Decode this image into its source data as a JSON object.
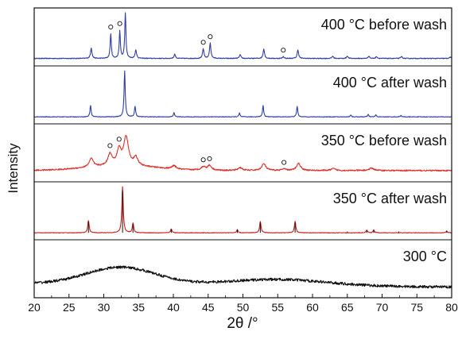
{
  "chart_data": {
    "type": "line",
    "title": "",
    "xlabel": "2θ /°",
    "ylabel": "Intensity",
    "xlim": [
      20,
      80
    ],
    "x_ticks": [
      "20",
      "25",
      "30",
      "35",
      "40",
      "45",
      "50",
      "55",
      "60",
      "65",
      "70",
      "75",
      "80"
    ],
    "grid": false,
    "legend": "none",
    "marker_symbol": "o",
    "panels": [
      {
        "label": "400 °C before wash",
        "color": "#2f3fa3",
        "baseline": 0.04,
        "noise": 0.008,
        "peaks": [
          {
            "x": 28.2,
            "h": 0.22,
            "w": 0.12
          },
          {
            "x": 31.0,
            "h": 0.52,
            "w": 0.1
          },
          {
            "x": 32.3,
            "h": 0.58,
            "w": 0.1
          },
          {
            "x": 33.1,
            "h": 0.97,
            "w": 0.1
          },
          {
            "x": 34.6,
            "h": 0.18,
            "w": 0.12
          },
          {
            "x": 40.2,
            "h": 0.09,
            "w": 0.12
          },
          {
            "x": 44.3,
            "h": 0.2,
            "w": 0.12
          },
          {
            "x": 45.3,
            "h": 0.32,
            "w": 0.12
          },
          {
            "x": 49.6,
            "h": 0.08,
            "w": 0.12
          },
          {
            "x": 53.0,
            "h": 0.2,
            "w": 0.12
          },
          {
            "x": 55.8,
            "h": 0.04,
            "w": 0.12
          },
          {
            "x": 57.9,
            "h": 0.18,
            "w": 0.12
          },
          {
            "x": 62.9,
            "h": 0.05,
            "w": 0.12
          },
          {
            "x": 65.0,
            "h": 0.05,
            "w": 0.12
          },
          {
            "x": 68.1,
            "h": 0.05,
            "w": 0.12
          },
          {
            "x": 69.2,
            "h": 0.04,
            "w": 0.12
          },
          {
            "x": 72.8,
            "h": 0.04,
            "w": 0.12
          },
          {
            "x": 79.8,
            "h": 0.03,
            "w": 0.12
          }
        ],
        "markers": [
          31.0,
          32.3,
          44.3,
          45.3,
          55.8
        ]
      },
      {
        "label": "400 °C after wash",
        "color": "#2f3fa3",
        "baseline": 0.03,
        "noise": 0.006,
        "peaks": [
          {
            "x": 28.1,
            "h": 0.24,
            "w": 0.1
          },
          {
            "x": 33.0,
            "h": 0.97,
            "w": 0.1
          },
          {
            "x": 34.5,
            "h": 0.22,
            "w": 0.1
          },
          {
            "x": 40.1,
            "h": 0.09,
            "w": 0.1
          },
          {
            "x": 49.5,
            "h": 0.08,
            "w": 0.1
          },
          {
            "x": 52.9,
            "h": 0.24,
            "w": 0.1
          },
          {
            "x": 57.8,
            "h": 0.22,
            "w": 0.1
          },
          {
            "x": 65.5,
            "h": 0.04,
            "w": 0.1
          },
          {
            "x": 68.0,
            "h": 0.05,
            "w": 0.1
          },
          {
            "x": 69.1,
            "h": 0.04,
            "w": 0.1
          },
          {
            "x": 72.7,
            "h": 0.03,
            "w": 0.1
          }
        ],
        "markers": []
      },
      {
        "label": "350 °C before wash",
        "color": "#e0302a",
        "baseline": 0.12,
        "noise": 0.014,
        "peaks": [
          {
            "x": 28.2,
            "h": 0.18,
            "w": 0.35
          },
          {
            "x": 30.9,
            "h": 0.25,
            "w": 0.35
          },
          {
            "x": 32.2,
            "h": 0.32,
            "w": 0.35
          },
          {
            "x": 33.2,
            "h": 0.6,
            "w": 0.4
          },
          {
            "x": 34.6,
            "h": 0.17,
            "w": 0.35
          },
          {
            "x": 40.1,
            "h": 0.07,
            "w": 0.35
          },
          {
            "x": 44.3,
            "h": 0.07,
            "w": 0.35
          },
          {
            "x": 45.2,
            "h": 0.1,
            "w": 0.35
          },
          {
            "x": 49.6,
            "h": 0.06,
            "w": 0.35
          },
          {
            "x": 53.0,
            "h": 0.14,
            "w": 0.35
          },
          {
            "x": 55.9,
            "h": 0.03,
            "w": 0.35
          },
          {
            "x": 58.0,
            "h": 0.15,
            "w": 0.35
          },
          {
            "x": 63.0,
            "h": 0.04,
            "w": 0.35
          },
          {
            "x": 68.5,
            "h": 0.05,
            "w": 0.4
          }
        ],
        "hump": {
          "x": 32.5,
          "h": 0.1,
          "w": 5.0
        },
        "markers": [
          30.9,
          32.2,
          44.3,
          45.2,
          55.9
        ]
      },
      {
        "label": "350 °C after wash",
        "color": "#c8201e",
        "baseline": 0.03,
        "noise": 0.005,
        "peaks": [
          {
            "x": 27.8,
            "h": 0.26,
            "w": 0.12
          },
          {
            "x": 32.7,
            "h": 0.97,
            "w": 0.12
          },
          {
            "x": 34.2,
            "h": 0.2,
            "w": 0.12
          },
          {
            "x": 39.7,
            "h": 0.08,
            "w": 0.12
          },
          {
            "x": 49.2,
            "h": 0.07,
            "w": 0.12
          },
          {
            "x": 52.5,
            "h": 0.24,
            "w": 0.12
          },
          {
            "x": 57.5,
            "h": 0.24,
            "w": 0.12
          },
          {
            "x": 67.8,
            "h": 0.06,
            "w": 0.12
          },
          {
            "x": 68.8,
            "h": 0.06,
            "w": 0.12
          },
          {
            "x": 79.3,
            "h": 0.04,
            "w": 0.12
          }
        ],
        "sticks": [
          27.8,
          32.7,
          34.2,
          39.7,
          49.2,
          52.5,
          57.5,
          65.0,
          67.8,
          68.8,
          72.4,
          79.3
        ],
        "markers": []
      },
      {
        "label": "300 °C",
        "color": "#111111",
        "baseline": 0.18,
        "noise": 0.028,
        "peaks": [],
        "hump": {
          "x": 32.5,
          "h": 0.36,
          "w": 5.0
        },
        "hump2": {
          "x": 55.0,
          "h": 0.13,
          "w": 7.0
        },
        "markers": []
      }
    ]
  }
}
